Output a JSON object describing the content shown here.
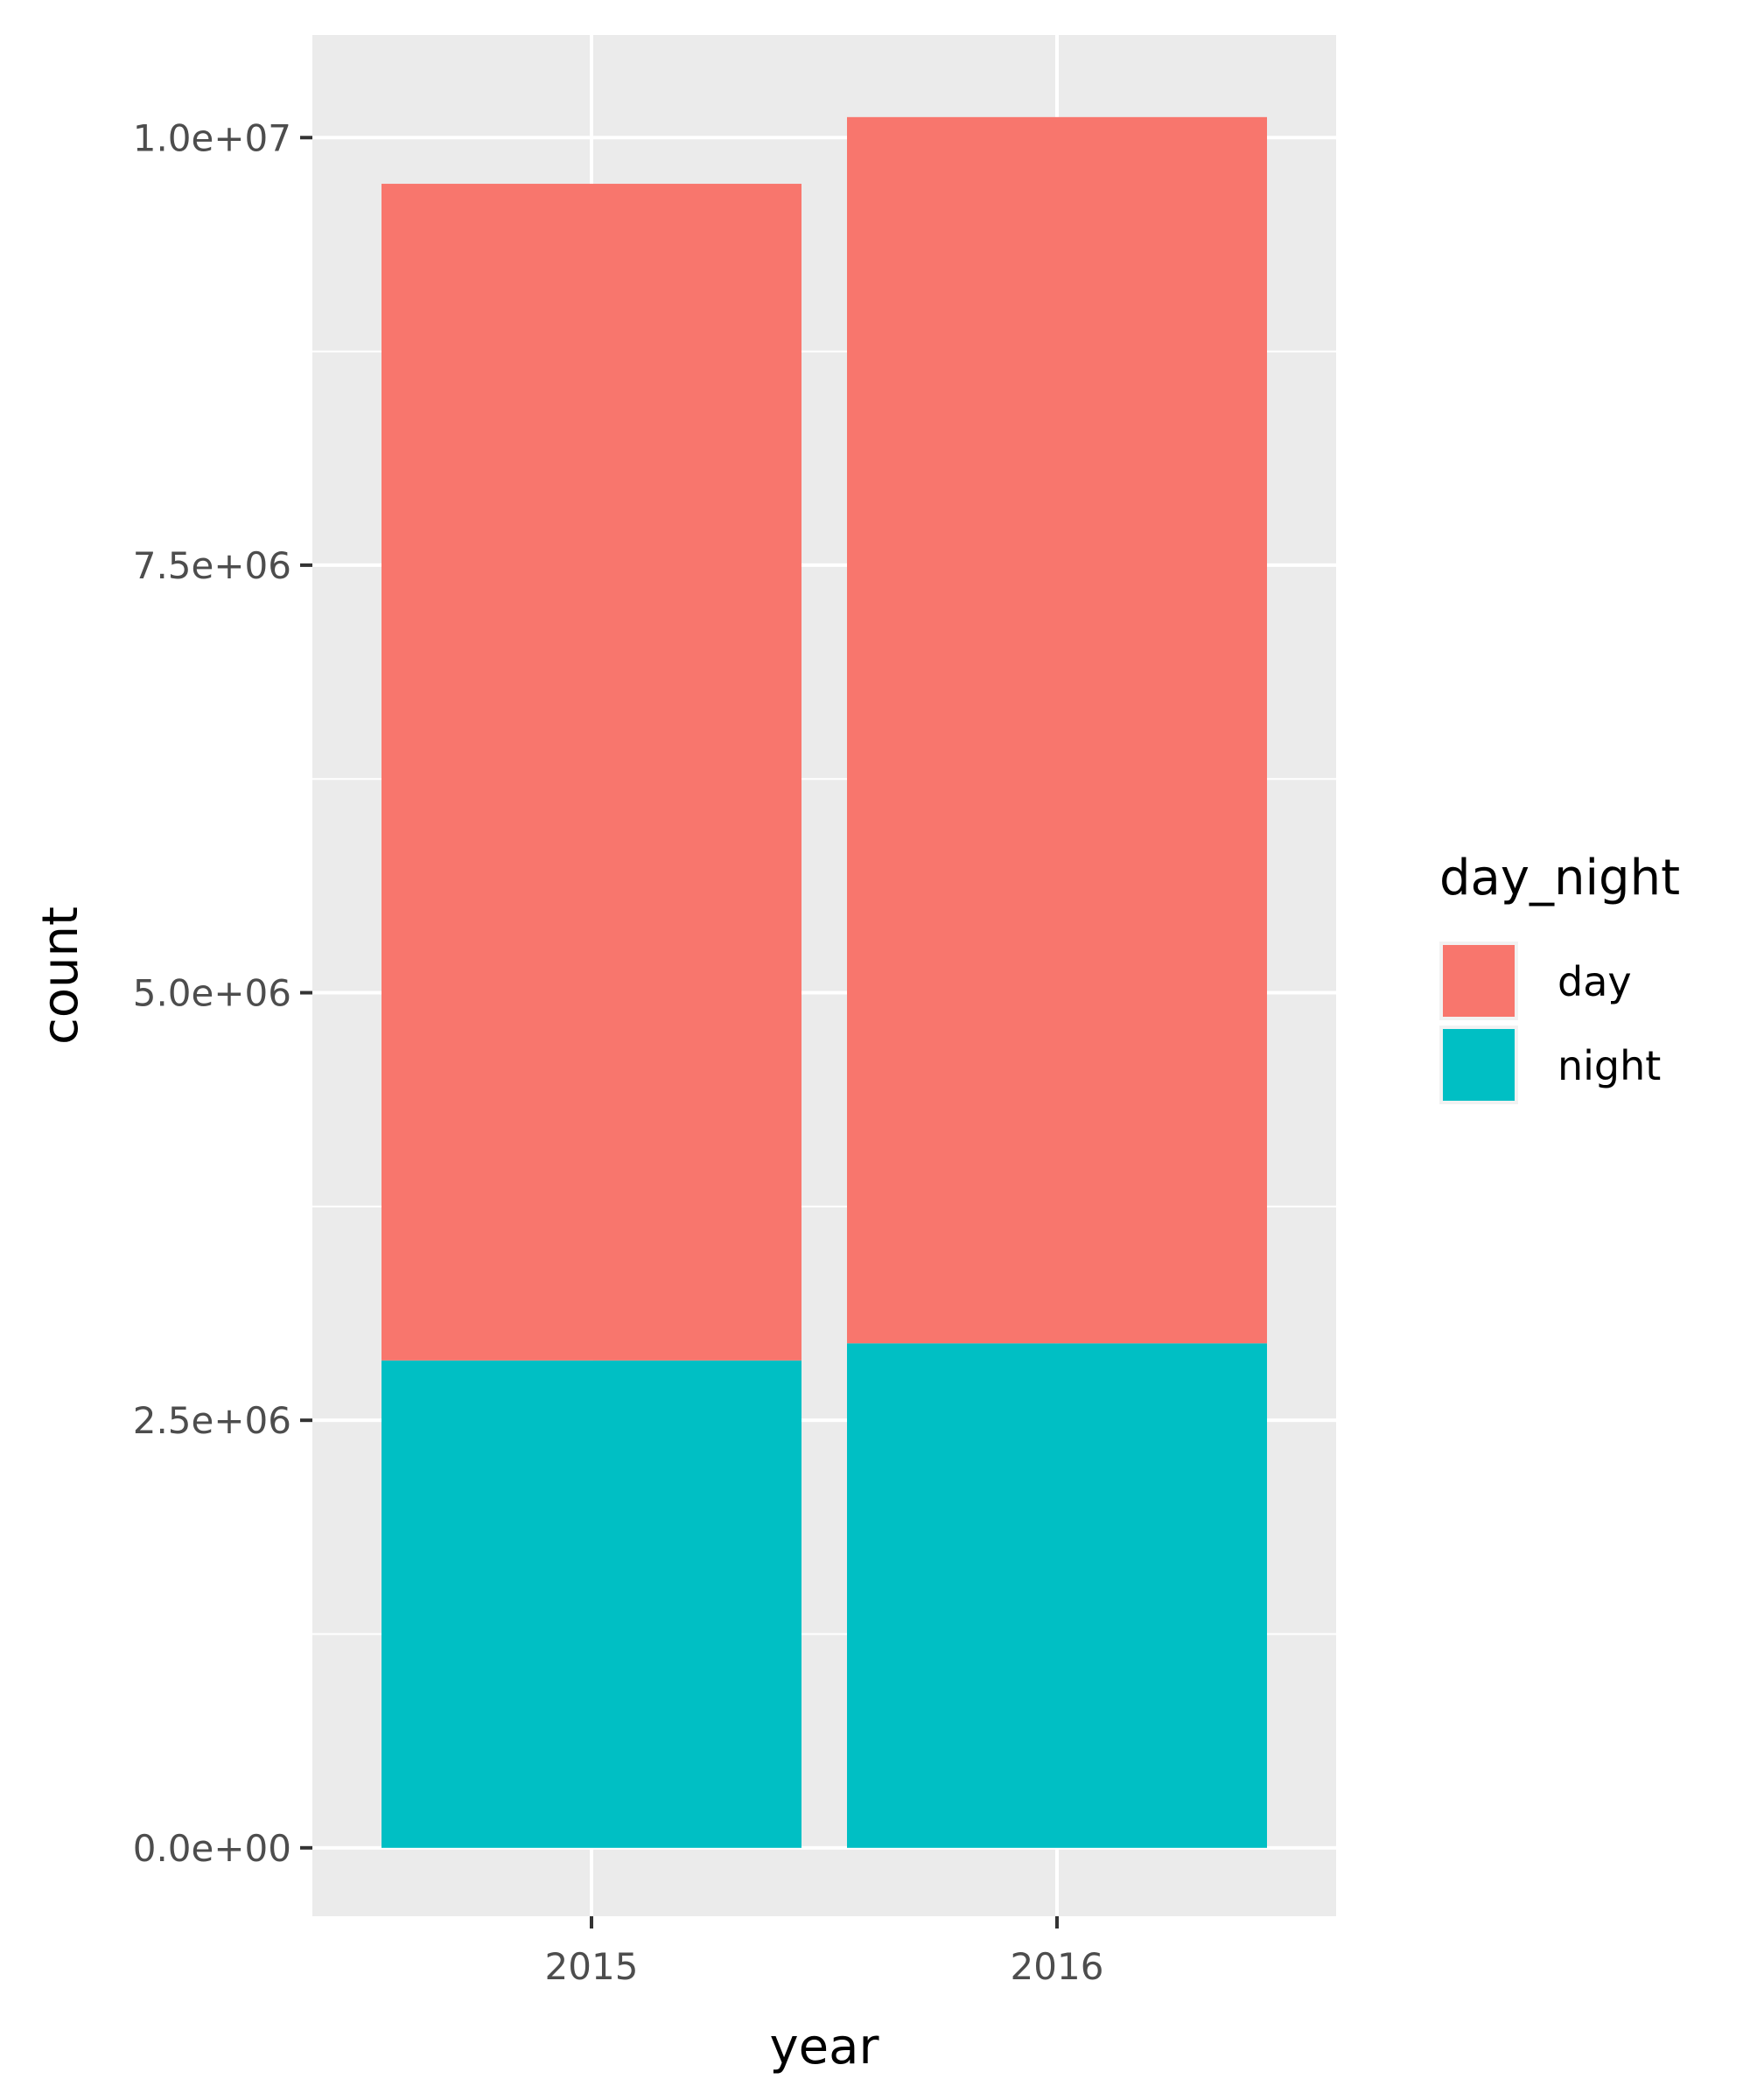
{
  "chart_data": {
    "type": "bar",
    "stacked": true,
    "categories": [
      "2015",
      "2016"
    ],
    "series": [
      {
        "name": "day",
        "color": "#F8766D",
        "values": [
          6880000,
          7170000
        ]
      },
      {
        "name": "night",
        "color": "#00BFC4",
        "values": [
          2850000,
          2950000
        ]
      }
    ],
    "xlabel": "year",
    "ylabel": "count",
    "ylim": [
      -400000,
      10600000
    ],
    "yticks": [
      0,
      2500000,
      5000000,
      7500000,
      10000000
    ],
    "ytick_labels": [
      "0.0e+00",
      "2.5e+06",
      "5.0e+06",
      "7.5e+06",
      "1.0e+07"
    ],
    "legend": {
      "title": "day_night",
      "placement": "right"
    },
    "grid": true,
    "panel_background": "#EBEBEB"
  }
}
